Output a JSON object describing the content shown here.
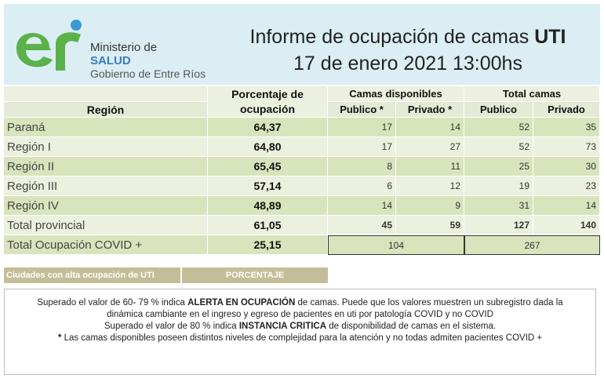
{
  "header": {
    "ministry": {
      "line1": "Ministerio de",
      "line2": "SALUD",
      "line3": "Gobierno de Entre Ríos"
    },
    "title": "Informe de ocupación de camas",
    "title_emphasis": "UTI",
    "date": "17 de enero 2021 13:00hs"
  },
  "table": {
    "columns": {
      "region": "Región",
      "percentage": "Porcentaje de ocupación",
      "available": "Camas disponibles",
      "total": "Total camas",
      "available_public": "Publico *",
      "available_private": "Privado *",
      "total_public": "Publico",
      "total_private": "Privado"
    },
    "rows": [
      [
        "Paraná",
        "64,37",
        17,
        14,
        52,
        35
      ],
      [
        "Región I",
        "64,80",
        17,
        27,
        52,
        73
      ],
      [
        "Región II",
        "65,45",
        8,
        11,
        25,
        30
      ],
      [
        "Región III",
        "57,14",
        6,
        12,
        19,
        23
      ],
      [
        "Región IV",
        "48,89",
        14,
        9,
        31,
        14
      ],
      [
        "Total provincial",
        "61,05",
        45,
        59,
        127,
        140
      ]
    ],
    "covid_row": {
      "label": "Total Ocupación COVID +",
      "percentage": "25,15",
      "available": 104,
      "total": 267
    }
  },
  "cities": {
    "label": "Ciudades con alta ocupación de UTI",
    "column": "PORCENTAJE"
  },
  "notes": [
    [
      {
        "text": "Superado el valor de 60- 79 %  indica ",
        "bold": false
      },
      {
        "text": "ALERTA EN OCUPACIÓN",
        "bold": true
      },
      {
        "text": " de camas. Puede que los valores muestren un subregistro dada la dinámica cambiante en el ingreso y egreso de pacientes en uti por patología COVID y no COVID",
        "bold": false
      }
    ],
    [
      {
        "text": "Superado el valor de 80 % indica ",
        "bold": false
      },
      {
        "text": "INSTANCIA CRITICA",
        "bold": true
      },
      {
        "text": " de disponibilidad de camas en el sistema.",
        "bold": false
      }
    ],
    [
      {
        "text": "*",
        "bold": true
      },
      {
        "text": " Las camas disponibles poseen distintos niveles de complejidad para la atención y no todas admiten pacientes COVID +",
        "bold": false
      }
    ]
  ]
}
